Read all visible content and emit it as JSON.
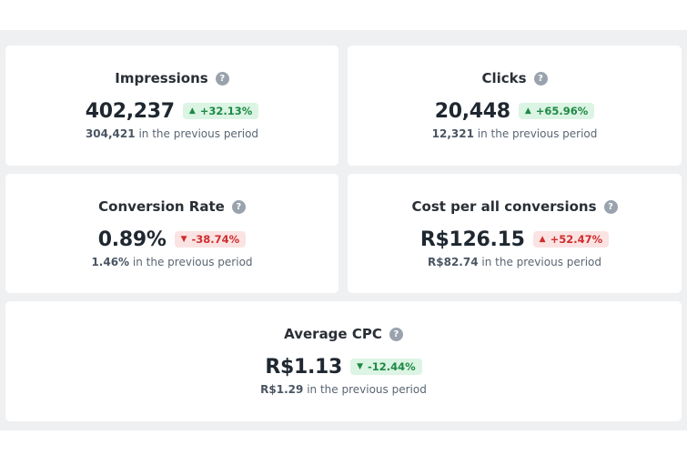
{
  "cards": [
    {
      "title": "Impressions",
      "value": "402,237",
      "change": "+32.13%",
      "change_direction": "up",
      "change_color": "#1c8a44",
      "previous_value": "304,421",
      "previous_label": "in the previous period"
    },
    {
      "title": "Clicks",
      "value": "20,448",
      "change": "+65.96%",
      "change_direction": "up",
      "change_color": "#1c8a44",
      "previous_value": "12,321",
      "previous_label": "in the previous period"
    },
    {
      "title": "Conversion Rate",
      "value": "0.89%",
      "change": "-38.74%",
      "change_direction": "down",
      "change_color": "#cf2e2e",
      "previous_value": "1.46%",
      "previous_label": "in the previous period"
    },
    {
      "title": "Cost per all conversions",
      "value": "R$126.15",
      "change": "+52.47%",
      "change_direction": "up",
      "change_color": "#cf2e2e",
      "previous_value": "R$82.74",
      "previous_label": "in the previous period"
    },
    {
      "title": "Average CPC",
      "value": "R$1.13",
      "change": "-12.44%",
      "change_direction": "down",
      "change_color": "#1c8a44",
      "previous_value": "R$1.29",
      "previous_label": "in the previous period"
    }
  ],
  "icons": {
    "help": "question-circle-icon",
    "up": "triangle-up-icon",
    "down": "triangle-down-icon"
  }
}
